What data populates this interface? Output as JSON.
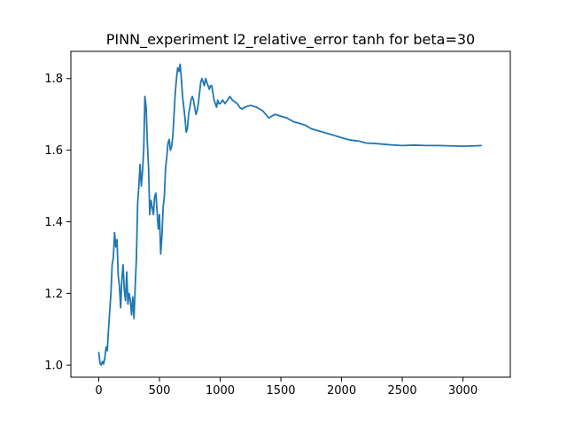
{
  "chart_data": {
    "type": "line",
    "title": "PINN_experiment l2_relative_error tanh for beta=30",
    "xlabel": "",
    "ylabel": "",
    "xlim": [
      -230,
      3390
    ],
    "ylim": [
      0.966,
      1.876
    ],
    "xticks": [
      0,
      500,
      1000,
      1500,
      2000,
      2500,
      3000
    ],
    "xtick_labels": [
      "0",
      "500",
      "1000",
      "1500",
      "2000",
      "2500",
      "3000"
    ],
    "yticks": [
      1.0,
      1.2,
      1.4,
      1.6,
      1.8
    ],
    "ytick_labels": [
      "1.0",
      "1.2",
      "1.4",
      "1.6",
      "1.8"
    ],
    "grid": false,
    "series": [
      {
        "name": "l2_relative_error",
        "color": "#1f77b4",
        "x": [
          0,
          10,
          20,
          30,
          40,
          50,
          60,
          70,
          80,
          90,
          100,
          110,
          120,
          130,
          140,
          150,
          160,
          170,
          180,
          190,
          200,
          210,
          220,
          230,
          240,
          250,
          260,
          270,
          280,
          290,
          300,
          310,
          320,
          330,
          340,
          350,
          360,
          370,
          380,
          390,
          400,
          410,
          420,
          430,
          440,
          450,
          460,
          470,
          480,
          490,
          500,
          510,
          520,
          530,
          540,
          550,
          560,
          570,
          580,
          590,
          600,
          610,
          620,
          630,
          640,
          650,
          660,
          670,
          680,
          690,
          700,
          710,
          720,
          730,
          740,
          750,
          760,
          770,
          780,
          790,
          800,
          810,
          820,
          830,
          840,
          850,
          860,
          870,
          880,
          890,
          900,
          910,
          920,
          930,
          940,
          950,
          960,
          970,
          980,
          990,
          1000,
          1020,
          1040,
          1060,
          1080,
          1100,
          1120,
          1140,
          1160,
          1180,
          1200,
          1250,
          1300,
          1350,
          1400,
          1450,
          1500,
          1550,
          1600,
          1650,
          1700,
          1750,
          1800,
          1850,
          1900,
          1950,
          2000,
          2050,
          2100,
          2150,
          2200,
          2300,
          2400,
          2500,
          2600,
          2700,
          2800,
          2900,
          3000,
          3100,
          3150
        ],
        "values": [
          1.035,
          1.005,
          1.0,
          1.01,
          1.003,
          1.02,
          1.05,
          1.04,
          1.1,
          1.15,
          1.2,
          1.28,
          1.3,
          1.37,
          1.33,
          1.35,
          1.25,
          1.22,
          1.16,
          1.24,
          1.28,
          1.21,
          1.18,
          1.26,
          1.17,
          1.2,
          1.18,
          1.14,
          1.19,
          1.13,
          1.22,
          1.3,
          1.45,
          1.5,
          1.56,
          1.5,
          1.54,
          1.6,
          1.75,
          1.72,
          1.62,
          1.55,
          1.42,
          1.46,
          1.44,
          1.42,
          1.47,
          1.48,
          1.43,
          1.38,
          1.42,
          1.31,
          1.36,
          1.44,
          1.47,
          1.55,
          1.58,
          1.62,
          1.63,
          1.6,
          1.61,
          1.64,
          1.7,
          1.76,
          1.8,
          1.83,
          1.82,
          1.84,
          1.8,
          1.75,
          1.72,
          1.69,
          1.65,
          1.66,
          1.7,
          1.72,
          1.74,
          1.75,
          1.74,
          1.72,
          1.7,
          1.71,
          1.73,
          1.76,
          1.79,
          1.8,
          1.79,
          1.78,
          1.8,
          1.79,
          1.78,
          1.77,
          1.78,
          1.78,
          1.76,
          1.74,
          1.73,
          1.72,
          1.74,
          1.73,
          1.73,
          1.74,
          1.73,
          1.74,
          1.75,
          1.74,
          1.735,
          1.73,
          1.72,
          1.715,
          1.72,
          1.725,
          1.72,
          1.71,
          1.69,
          1.7,
          1.695,
          1.69,
          1.68,
          1.675,
          1.67,
          1.66,
          1.655,
          1.65,
          1.645,
          1.64,
          1.635,
          1.63,
          1.627,
          1.625,
          1.62,
          1.618,
          1.615,
          1.613,
          1.614,
          1.613,
          1.613,
          1.612,
          1.611,
          1.612,
          1.613
        ]
      }
    ]
  }
}
